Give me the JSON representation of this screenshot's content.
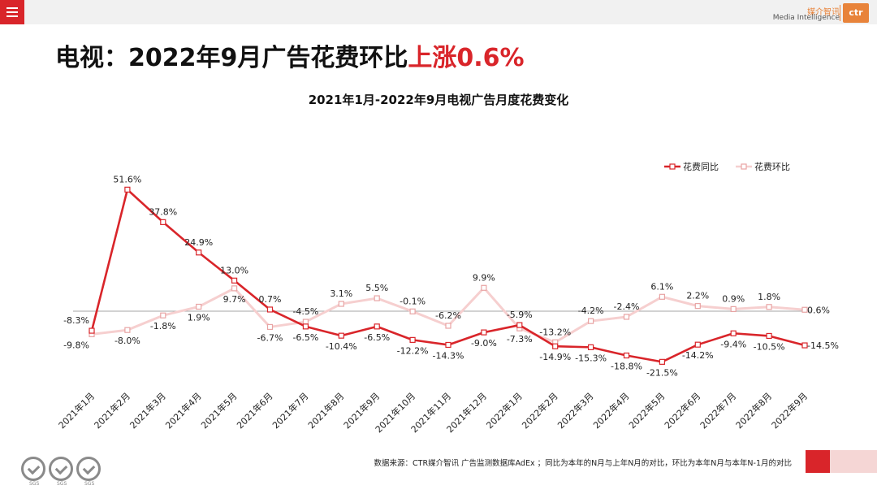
{
  "header": {
    "menu_icon": "hamburger-menu-icon",
    "logo_cn": "媒介智讯",
    "logo_en": "Media Intelligence",
    "logo_mark": "ctr"
  },
  "headline": {
    "prefix": "电视：2022年9月广告花费环比",
    "highlight": "上涨0.6%"
  },
  "chart_data": {
    "type": "line",
    "title": "2021年1月-2022年9月电视广告月度花费变化",
    "categories": [
      "2021年1月",
      "2021年2月",
      "2021年3月",
      "2021年4月",
      "2021年5月",
      "2021年6月",
      "2021年7月",
      "2021年8月",
      "2021年9月",
      "2021年10月",
      "2021年11月",
      "2021年12月",
      "2022年1月",
      "2022年2月",
      "2022年3月",
      "2022年4月",
      "2022年5月",
      "2022年6月",
      "2022年7月",
      "2022年8月",
      "2022年9月"
    ],
    "series": [
      {
        "name": "花费同比",
        "color": "#d9252a",
        "values": [
          -8.3,
          51.6,
          37.8,
          24.9,
          13.0,
          0.7,
          -6.5,
          -10.4,
          -6.5,
          -12.2,
          -14.3,
          -9.0,
          -5.9,
          -14.9,
          -15.3,
          -18.8,
          -21.5,
          -14.2,
          -9.4,
          -10.5,
          -14.5
        ],
        "labels": [
          "-8.3%",
          "51.6%",
          "37.8%",
          "24.9%",
          "13.0%",
          "0.7%",
          "-6.5%",
          "-10.4%",
          "-6.5%",
          "-12.2%",
          "-14.3%",
          "-9.0%",
          "-5.9%",
          "-14.9%",
          "-15.3%",
          "-18.8%",
          "-21.5%",
          "-14.2%",
          "-9.4%",
          "-10.5%",
          "-14.5%"
        ]
      },
      {
        "name": "花费环比",
        "color": "#f6cfcf",
        "values": [
          -9.8,
          -8.0,
          -1.8,
          1.9,
          9.7,
          -6.7,
          -4.5,
          3.1,
          5.5,
          -0.1,
          -6.2,
          9.9,
          -7.3,
          -13.2,
          -4.2,
          -2.4,
          6.1,
          2.2,
          0.9,
          1.8,
          0.6
        ],
        "labels": [
          "-9.8%",
          "-8.0%",
          "-1.8%",
          "1.9%",
          "9.7%",
          "-6.7%",
          "-4.5%",
          "3.1%",
          "5.5%",
          "-0.1%",
          "-6.2%",
          "9.9%",
          "-7.3%",
          "-13.2%",
          "-4.2%",
          "-2.4%",
          "6.1%",
          "2.2%",
          "0.9%",
          "1.8%",
          "0.6%"
        ]
      }
    ],
    "legend_position": "top-right",
    "grid": false,
    "baseline": 0
  },
  "footer": {
    "note": "数据来源：CTR媒介智讯 广告监测数据库AdEx ；同比为本年的N月与上年N月的对比，环比为本年N月与本年N-1月的对比",
    "badge_label": "SGS",
    "badge_icon": "sgs-certification-icon"
  }
}
